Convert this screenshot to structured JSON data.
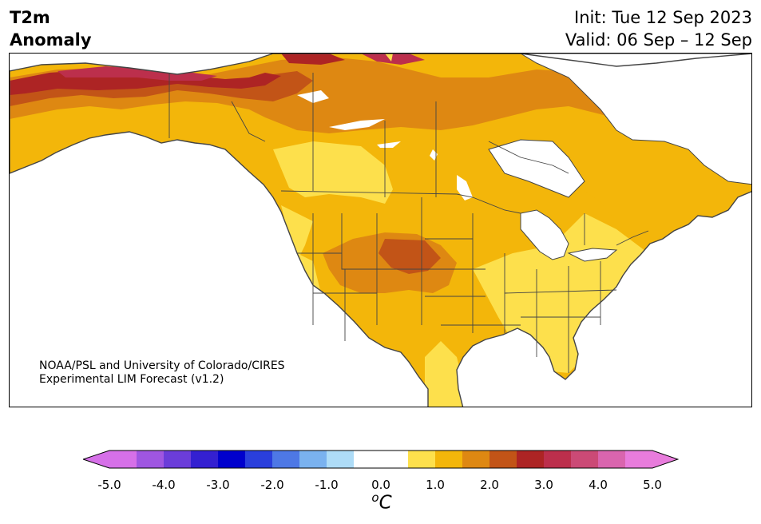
{
  "title": {
    "left_line1": "T2m",
    "left_line2": "Anomaly",
    "init": "Init: Tue 12 Sep 2023",
    "valid": "Valid: 06 Sep – 12 Sep"
  },
  "credit": {
    "line1": "NOAA/PSL and University of Colorado/CIRES",
    "line2": "Experimental LIM Forecast (v1.2)"
  },
  "map": {
    "region": "North America",
    "feature_icons": [
      "coastline",
      "state-borders",
      "province-borders",
      "great-lakes"
    ]
  },
  "colorbar": {
    "unit_base": "C",
    "unit_super": "o",
    "tick_labels": [
      "-5.0",
      "-4.0",
      "-3.0",
      "-2.0",
      "-1.0",
      "0.0",
      "1.0",
      "2.0",
      "3.0",
      "4.0",
      "5.0"
    ],
    "tick_values": [
      -5.0,
      -4.0,
      -3.0,
      -2.0,
      -1.0,
      0.0,
      1.0,
      2.0,
      3.0,
      4.0,
      5.0
    ],
    "colors": [
      "#d670e8",
      "#9f56e1",
      "#6b3dd9",
      "#3420d1",
      "#0000cd",
      "#2a3fdc",
      "#4e78e5",
      "#7ab2ef",
      "#aedcf7",
      "#ffffff",
      "#ffffff",
      "#fde04c",
      "#f3b60a",
      "#de8812",
      "#c25417",
      "#ad2424",
      "#bc2f4c",
      "#cb4a76",
      "#d965ae",
      "#e87cdc"
    ],
    "extend_min_color": "#d670e8",
    "extend_max_color": "#e87cdc"
  },
  "anomaly_colors": {
    "0.5-1.0": "#fde04c",
    "1.0-1.5": "#f3b60a",
    "1.5-2.0": "#de8812",
    "2.0-2.5": "#c25417",
    "2.5-3.0": "#ad2424",
    "3.0-3.5": "#bc2f4c"
  }
}
